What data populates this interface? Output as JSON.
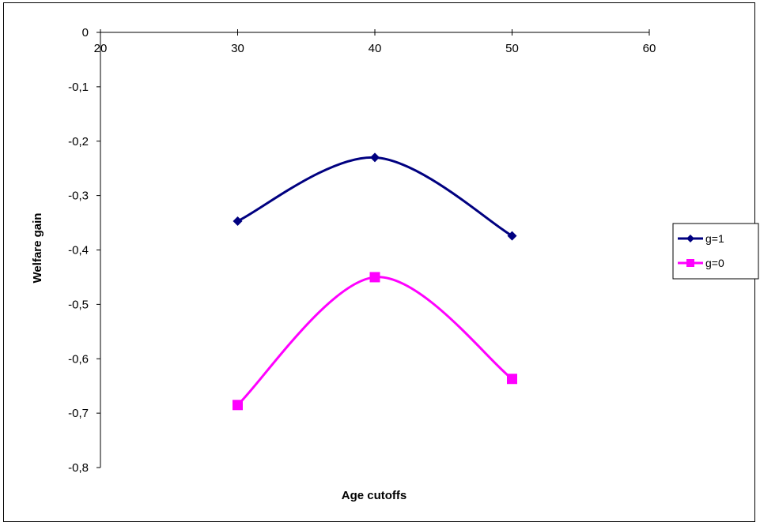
{
  "chart_data": {
    "type": "line",
    "title": "",
    "xlabel": "Age cutoffs",
    "ylabel": "Welfare gain",
    "xlim": [
      20,
      60
    ],
    "ylim": [
      -0.8,
      0
    ],
    "x_ticks": [
      20,
      30,
      40,
      50,
      60
    ],
    "x_tick_labels": [
      "20",
      "30",
      "40",
      "50",
      "60"
    ],
    "y_ticks": [
      0,
      -0.1,
      -0.2,
      -0.3,
      -0.4,
      -0.5,
      -0.6,
      -0.7,
      -0.8
    ],
    "y_tick_labels": [
      "0",
      "-0,1",
      "-0,2",
      "-0,3",
      "-0,4",
      "-0,5",
      "-0,6",
      "-0,7",
      "-0,8"
    ],
    "x_axis_position": "top",
    "grid": false,
    "legend_position": "right",
    "series": [
      {
        "name": "g=1",
        "color": "#000080",
        "marker": "diamond",
        "x": [
          30,
          40,
          50
        ],
        "values": [
          -0.347,
          -0.23,
          -0.374
        ]
      },
      {
        "name": "g=0",
        "color": "#FF00FF",
        "marker": "square",
        "x": [
          30,
          40,
          50
        ],
        "values": [
          -0.685,
          -0.45,
          -0.637
        ]
      }
    ]
  }
}
